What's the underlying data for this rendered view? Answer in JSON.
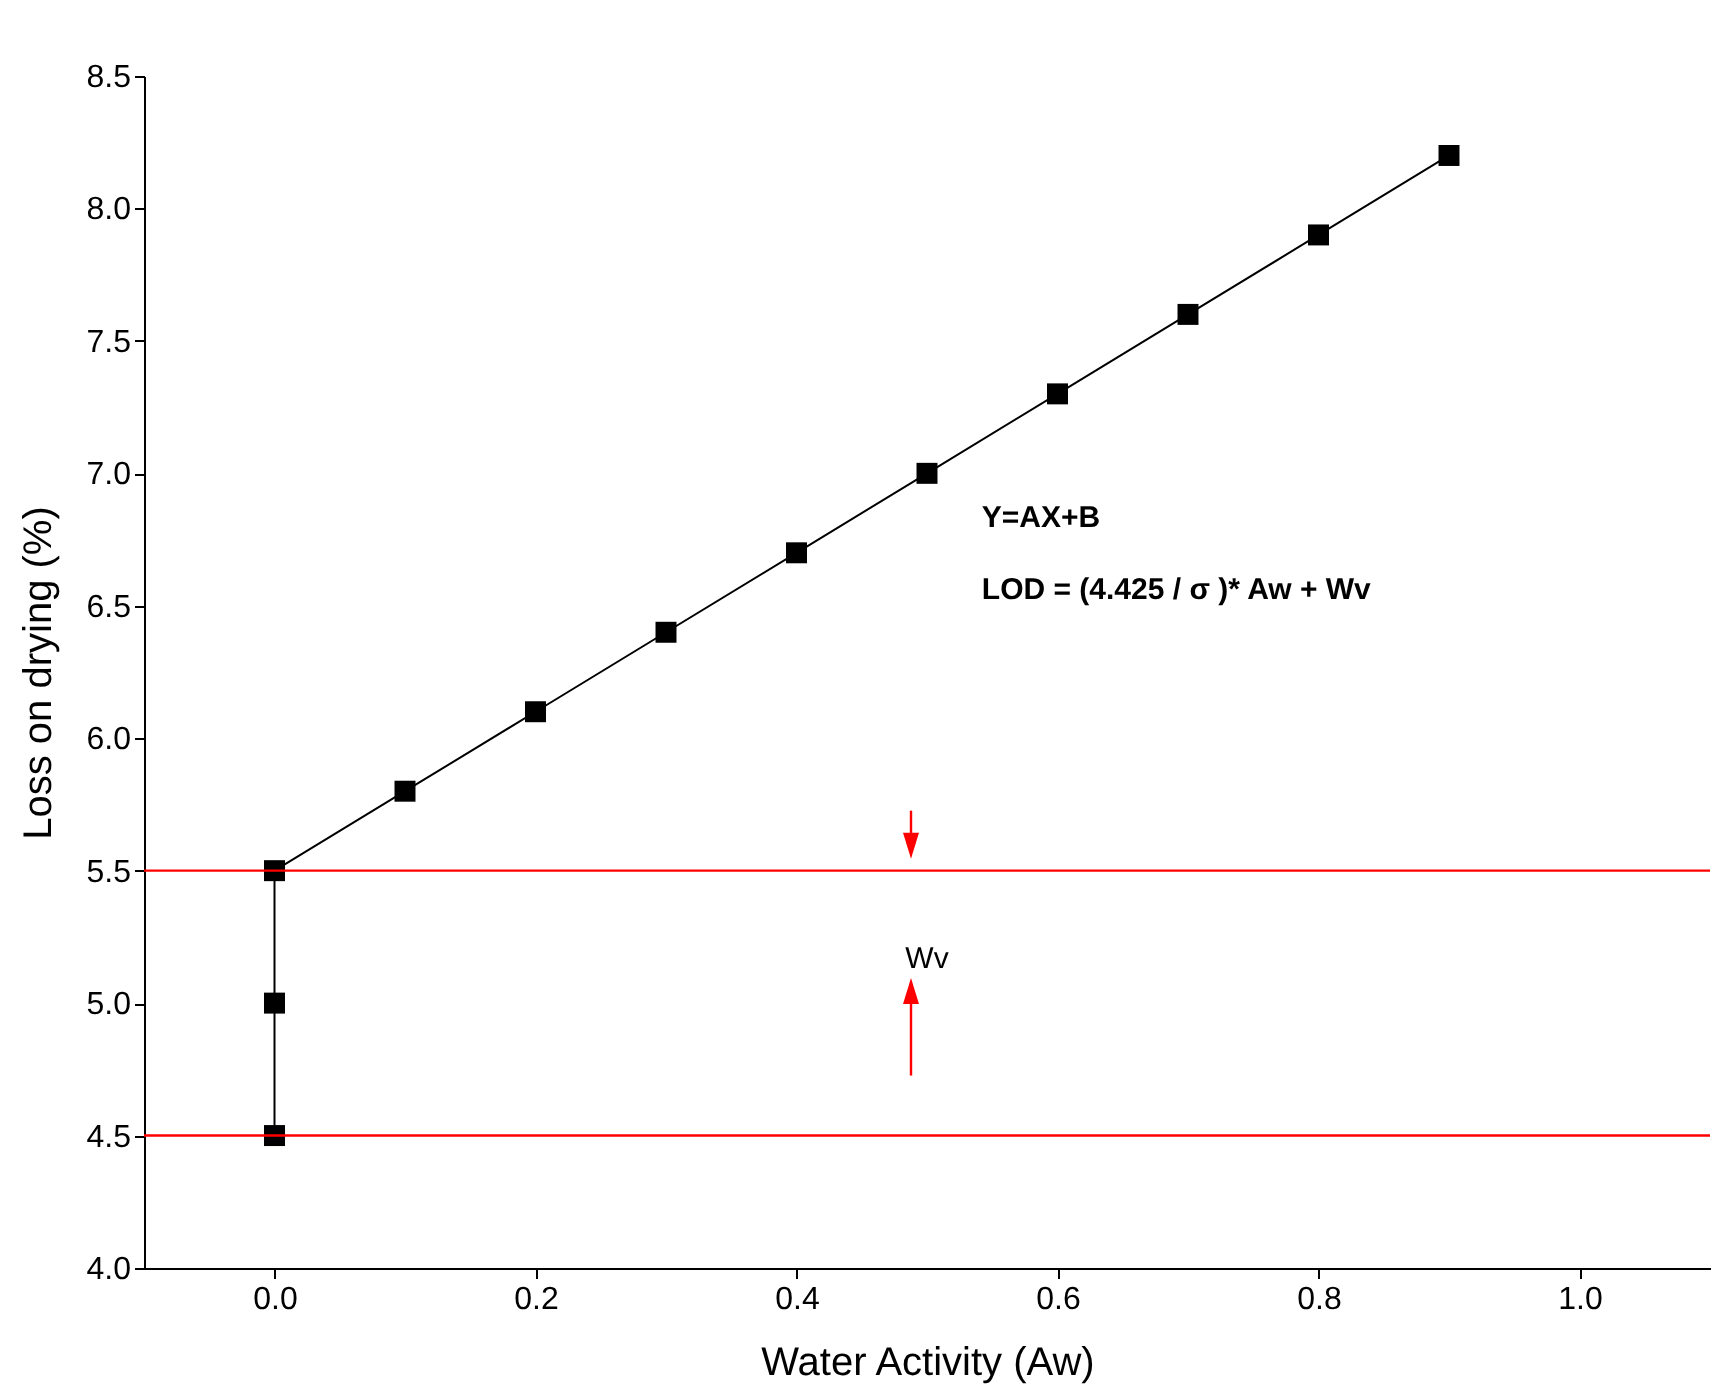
{
  "chart_data": {
    "type": "line",
    "xlabel": "Water Activity (Aw)",
    "ylabel": "Loss on drying (%)",
    "x": [
      0,
      0,
      0,
      0.1,
      0.2,
      0.3,
      0.4,
      0.5,
      0.6,
      0.7,
      0.8,
      0.9
    ],
    "series": [
      {
        "color": "#000000",
        "values": [
          4.5,
          5.0,
          5.5,
          5.8,
          6.1,
          6.4,
          6.7,
          7.0,
          7.3,
          7.6,
          7.9,
          8.2
        ]
      }
    ],
    "xlim": [
      -0.1,
      1.1
    ],
    "xticks": [
      {
        "value": 0,
        "label": "0.0"
      },
      0.2,
      0.4,
      0.6,
      0.8,
      {
        "value": 1,
        "label": "1.0"
      }
    ],
    "ylim": [
      4.0,
      8.5
    ],
    "yticks": [
      {
        "value": 4,
        "label": "4.0"
      },
      4.5,
      {
        "value": 5,
        "label": "5.0"
      },
      5.5,
      {
        "value": 6,
        "label": "6.0"
      },
      6.5,
      {
        "value": 7,
        "label": "7.0"
      },
      7.5,
      {
        "value": 8,
        "label": "8.0"
      },
      8.5
    ],
    "marker": "square",
    "line_style": "solid",
    "grid": false,
    "ref_lines": [
      {
        "axis": "y",
        "value": 5.5,
        "color": "#ff0000"
      },
      {
        "axis": "y",
        "value": 4.5,
        "color": "#ff0000"
      }
    ],
    "annotations": [
      "Y=AX+B",
      "LOD =  (4.425 / σ )* Aw  + Wv",
      "Wv"
    ]
  }
}
